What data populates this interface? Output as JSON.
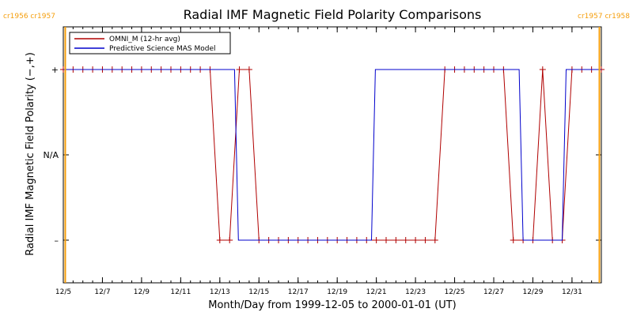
{
  "chart_data": {
    "type": "line",
    "title": "Radial IMF Magnetic Field Polarity Comparisons",
    "xlabel": "Month/Day from 1999-12-05 to 2000-01-01 (UT)",
    "ylabel": "Radial IMF Magnetic Field Polarity (−,+)",
    "x_unit": "day",
    "xlim": [
      0,
      27.5
    ],
    "ylim": [
      -1.5,
      1.5
    ],
    "x_ticks": [
      {
        "x": 0,
        "label": "12/5"
      },
      {
        "x": 2,
        "label": "12/7"
      },
      {
        "x": 4,
        "label": "12/9"
      },
      {
        "x": 6,
        "label": "12/11"
      },
      {
        "x": 8,
        "label": "12/13"
      },
      {
        "x": 10,
        "label": "12/15"
      },
      {
        "x": 12,
        "label": "12/17"
      },
      {
        "x": 14,
        "label": "12/19"
      },
      {
        "x": 16,
        "label": "12/21"
      },
      {
        "x": 18,
        "label": "12/23"
      },
      {
        "x": 20,
        "label": "12/25"
      },
      {
        "x": 22,
        "label": "12/27"
      },
      {
        "x": 24,
        "label": "12/29"
      },
      {
        "x": 26,
        "label": "12/31"
      }
    ],
    "y_ticks": [
      {
        "y": 1,
        "label": "+"
      },
      {
        "y": 0,
        "label": "N/A"
      },
      {
        "y": -1,
        "label": "–"
      }
    ],
    "carrington_markers": [
      {
        "x": 0.1,
        "label": "cr1956 cr1957",
        "position": "left"
      },
      {
        "x": 27.4,
        "label": "cr1957 cr1958",
        "position": "right"
      }
    ],
    "legend": {
      "placement": "top-left"
    },
    "series": [
      {
        "name": "OMNI_M (12-hr avg)",
        "color": "#b00000",
        "marker": "plus",
        "x": [
          0,
          0.5,
          1,
          1.5,
          2,
          2.5,
          3,
          3.5,
          4,
          4.5,
          5,
          5.5,
          6,
          6.5,
          7,
          7.5,
          8,
          8.5,
          9,
          9.5,
          10,
          10.5,
          11,
          11.5,
          12,
          12.5,
          13,
          13.5,
          14,
          14.5,
          15,
          15.5,
          16,
          16.5,
          17,
          17.5,
          18,
          18.5,
          19,
          19.5,
          20,
          20.5,
          21,
          21.5,
          22,
          22.5,
          23,
          23.5,
          24,
          24.5,
          25,
          25.5,
          26,
          26.5,
          27,
          27.5
        ],
        "y": [
          1,
          1,
          1,
          1,
          1,
          1,
          1,
          1,
          1,
          1,
          1,
          1,
          1,
          1,
          1,
          1,
          -1,
          -1,
          1,
          1,
          -1,
          -1,
          -1,
          -1,
          -1,
          -1,
          -1,
          -1,
          -1,
          -1,
          -1,
          -1,
          -1,
          -1,
          -1,
          -1,
          -1,
          -1,
          -1,
          1,
          1,
          1,
          1,
          1,
          1,
          1,
          -1,
          -1,
          -1,
          1,
          -1,
          -1,
          1,
          1,
          1,
          1
        ]
      },
      {
        "name": "Predictive Science MAS Model",
        "color": "#0000cc",
        "marker": "none",
        "x": [
          0,
          8.75,
          8.95,
          15.75,
          15.95,
          23.3,
          23.5,
          25.5,
          25.7,
          27.5
        ],
        "y": [
          1,
          1,
          -1,
          -1,
          1,
          1,
          -1,
          -1,
          1,
          1
        ]
      }
    ]
  }
}
